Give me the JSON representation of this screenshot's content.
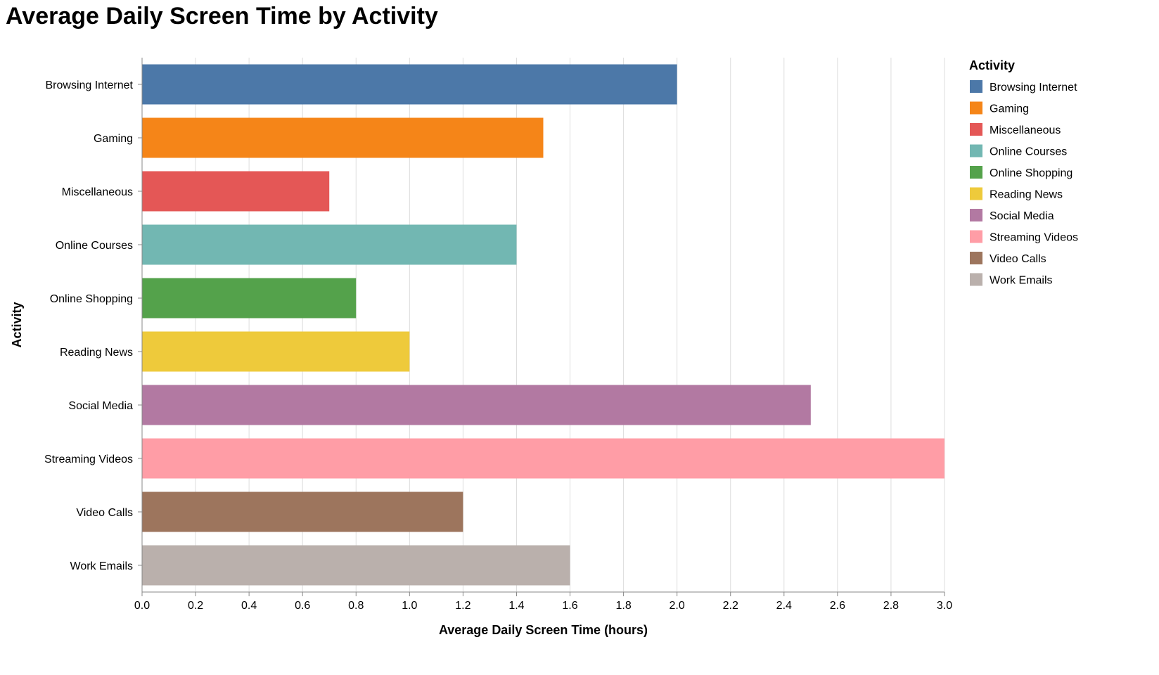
{
  "chart_data": {
    "type": "bar",
    "orientation": "horizontal",
    "title": "Average Daily Screen Time by Activity",
    "xlabel": "Average Daily Screen Time (hours)",
    "ylabel": "Activity",
    "xlim": [
      0,
      3.0
    ],
    "x_ticks": [
      "0.0",
      "0.2",
      "0.4",
      "0.6",
      "0.8",
      "1.0",
      "1.2",
      "1.4",
      "1.6",
      "1.8",
      "2.0",
      "2.2",
      "2.4",
      "2.6",
      "2.8",
      "3.0"
    ],
    "grid": true,
    "legend_title": "Activity",
    "legend_position": "right",
    "categories": [
      "Browsing Internet",
      "Gaming",
      "Miscellaneous",
      "Online Courses",
      "Online Shopping",
      "Reading News",
      "Social Media",
      "Streaming Videos",
      "Video Calls",
      "Work Emails"
    ],
    "values": [
      2.0,
      1.5,
      0.7,
      1.4,
      0.8,
      1.0,
      2.5,
      3.0,
      1.2,
      1.6
    ],
    "colors": [
      "#4c78a8",
      "#f58518",
      "#e45756",
      "#72b7b2",
      "#54a24b",
      "#eeca3b",
      "#b279a2",
      "#ff9da6",
      "#9d755d",
      "#bab0ac"
    ]
  }
}
